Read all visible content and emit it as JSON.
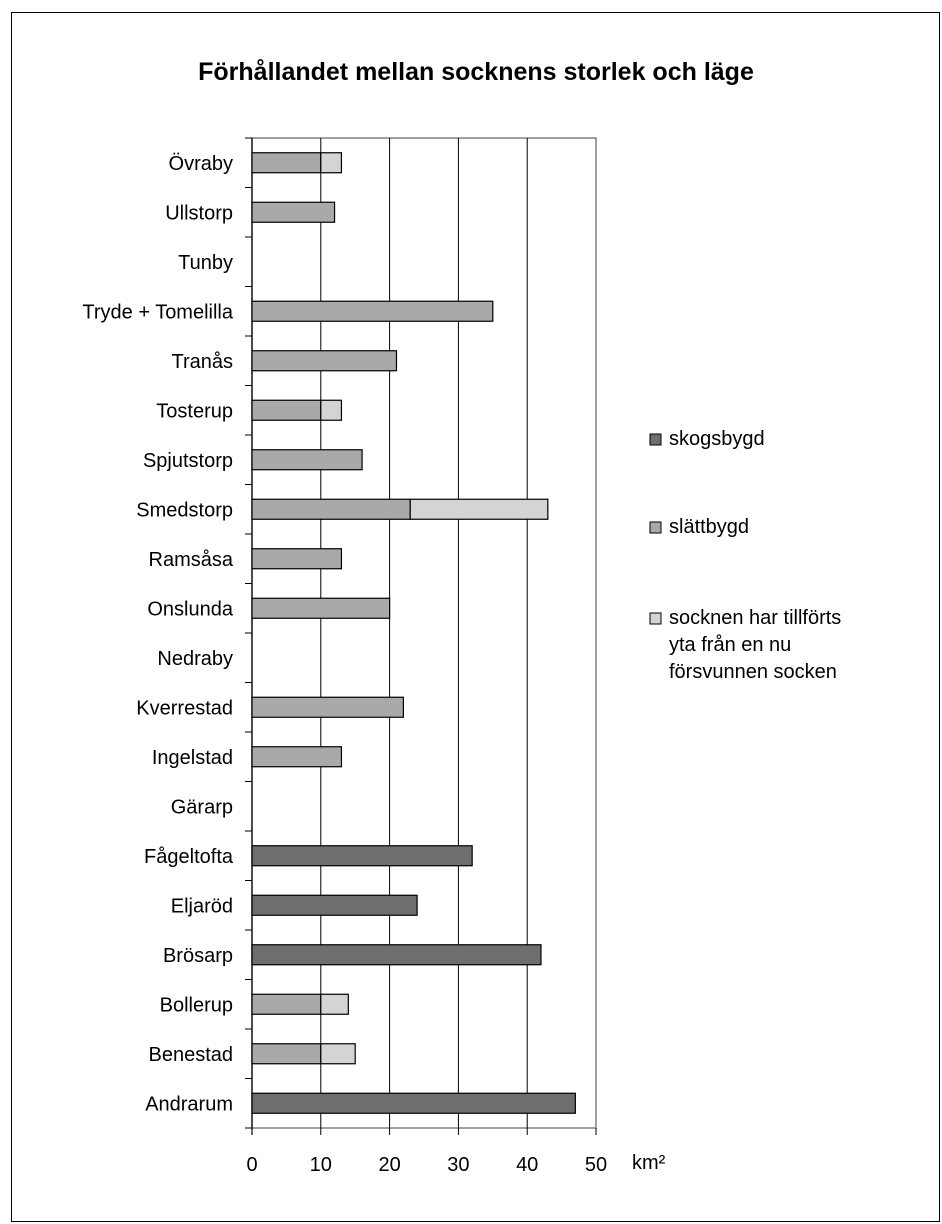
{
  "chart_data": {
    "type": "bar",
    "orientation": "horizontal",
    "stacked": true,
    "title": "Förhållandet mellan socknens storlek och läge",
    "xlabel": "",
    "ylabel": "",
    "unit_label": "km²",
    "xlim": [
      0,
      50
    ],
    "xticks": [
      0,
      10,
      20,
      30,
      40,
      50
    ],
    "grid": "vertical",
    "legend_position": "right",
    "categories": [
      "Övraby",
      "Ullstorp",
      "Tunby",
      "Tryde + Tomelilla",
      "Tranås",
      "Tosterup",
      "Spjutstorp",
      "Smedstorp",
      "Ramsåsa",
      "Onslunda",
      "Nedraby",
      "Kverrestad",
      "Ingelstad",
      "Gärarp",
      "Fågeltofta",
      "Eljaröd",
      "Brösarp",
      "Bollerup",
      "Benestad",
      "Andrarum"
    ],
    "series": [
      {
        "name": "skogsbygd",
        "color": "#6e6e6e",
        "values": [
          0,
          0,
          0,
          0,
          0,
          0,
          0,
          0,
          0,
          0,
          0,
          0,
          0,
          0,
          32,
          24,
          42,
          0,
          0,
          47
        ]
      },
      {
        "name": "slättbygd",
        "color": "#a9a9a9",
        "values": [
          10,
          12,
          0,
          35,
          21,
          10,
          16,
          23,
          13,
          20,
          0,
          22,
          13,
          0,
          0,
          0,
          0,
          10,
          10,
          0
        ]
      },
      {
        "name": "socknen har tillförts yta från en nu försvunnen socken",
        "color": "#d4d4d4",
        "values": [
          3,
          0,
          0,
          0,
          0,
          3,
          0,
          20,
          0,
          0,
          0,
          0,
          0,
          0,
          0,
          0,
          0,
          4,
          5,
          0
        ]
      }
    ]
  }
}
